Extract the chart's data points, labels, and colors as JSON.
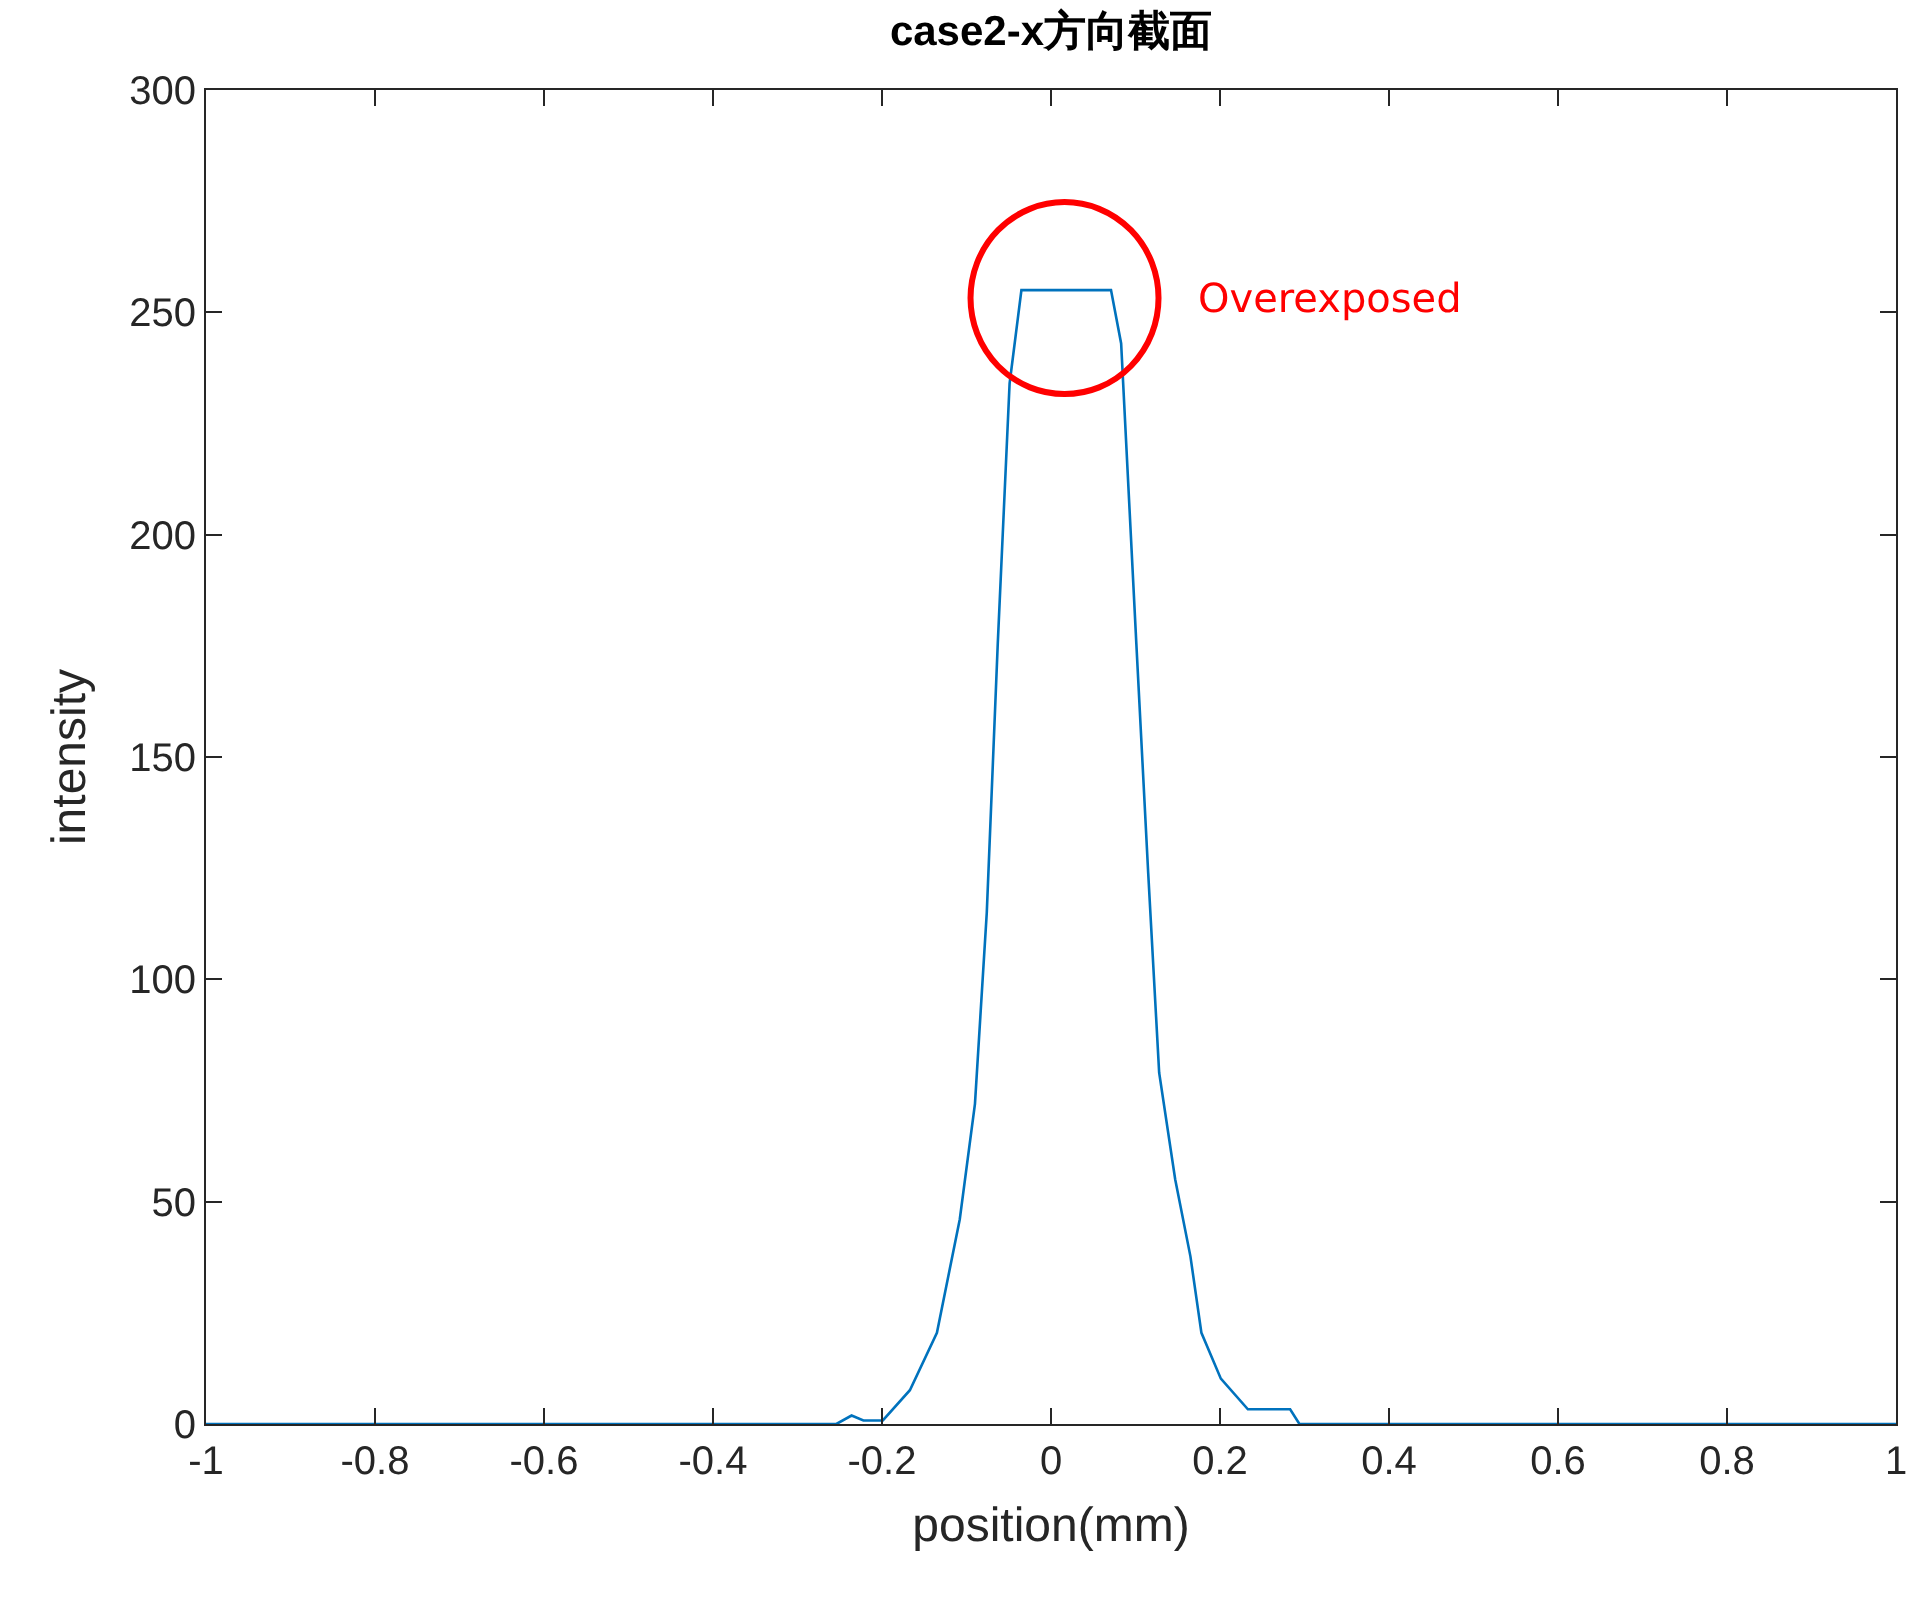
{
  "chart_data": {
    "type": "line",
    "title": "case2-x方向截面",
    "xlabel": "position(mm)",
    "ylabel": "intensity",
    "x": [
      -1,
      -0.254,
      -0.236,
      -0.222,
      -0.199,
      -0.167,
      -0.135,
      -0.108,
      -0.09,
      -0.076,
      -0.063,
      -0.049,
      -0.035,
      0.071,
      0.083,
      0.101,
      0.115,
      0.128,
      0.147,
      0.165,
      0.178,
      0.201,
      0.233,
      0.283,
      0.294,
      1
    ],
    "series": [
      {
        "color": "#0072bd",
        "values": [
          0,
          0,
          1.9,
          0.8,
          0.8,
          7.6,
          20.5,
          46,
          72,
          115,
          175.5,
          234,
          255,
          255,
          243,
          175.5,
          124,
          79,
          55,
          37.7,
          20.5,
          10.2,
          3.3,
          3.3,
          0,
          0
        ]
      }
    ],
    "xlim": [
      -1,
      1
    ],
    "xticks": [
      -1,
      -0.8,
      -0.6,
      -0.4,
      -0.2,
      0,
      0.2,
      0.4,
      0.6,
      0.8,
      1
    ],
    "ylim": [
      0,
      300
    ],
    "yticks": [
      0,
      50,
      100,
      150,
      200,
      250,
      300
    ],
    "grid": false,
    "marker": "none",
    "line_style": "solid",
    "annotations": [
      "Overexposed"
    ]
  }
}
